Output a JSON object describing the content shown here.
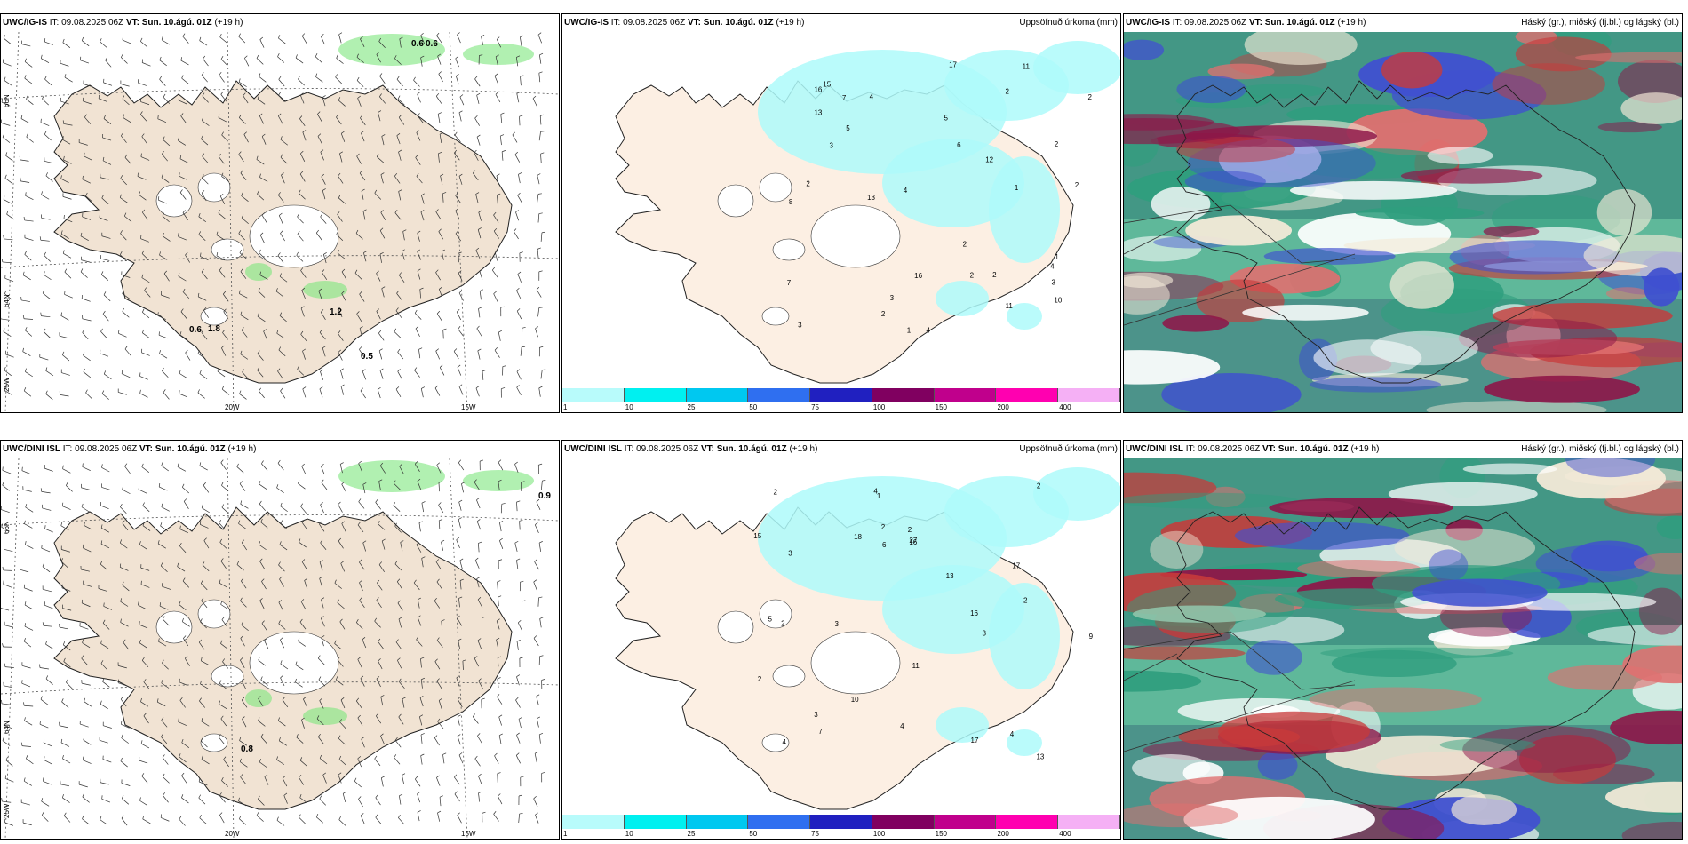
{
  "panels": [
    {
      "id": "p1",
      "model": "UWC/IG-IS",
      "it_prefix": "IT:",
      "it": "09.08.2025 06Z",
      "vt_prefix": "VT:",
      "vt": "Sun. 10.ágú. 01Z",
      "lead": "(+19 h)",
      "right_title": "",
      "kind": "wind"
    },
    {
      "id": "p2",
      "model": "UWC/IG-IS",
      "it_prefix": "IT:",
      "it": "09.08.2025 06Z",
      "vt_prefix": "VT:",
      "vt": "Sun. 10.ágú. 01Z",
      "lead": "(+19 h)",
      "right_title": "Uppsöfnuð úrkoma (mm)",
      "kind": "precip"
    },
    {
      "id": "p3",
      "model": "UWC/IG-IS",
      "it_prefix": "IT:",
      "it": "09.08.2025 06Z",
      "vt_prefix": "VT:",
      "vt": "Sun. 10.ágú. 01Z",
      "lead": "(+19 h)",
      "right_title": "Háský (gr.), miðský (fj.bl.) og lágský (bl.)",
      "kind": "cloud"
    },
    {
      "id": "p4",
      "model": "UWC/DINI ISL",
      "it_prefix": "IT:",
      "it": "09.08.2025 06Z",
      "vt_prefix": "VT:",
      "vt": "Sun. 10.ágú. 01Z",
      "lead": "(+19 h)",
      "right_title": "",
      "kind": "wind"
    },
    {
      "id": "p5",
      "model": "UWC/DINI ISL",
      "it_prefix": "IT:",
      "it": "09.08.2025 06Z",
      "vt_prefix": "VT:",
      "vt": "Sun. 10.ágú. 01Z",
      "lead": "(+19 h)",
      "right_title": "Uppsöfnuð úrkoma (mm)",
      "kind": "precip"
    },
    {
      "id": "p6",
      "model": "UWC/DINI ISL",
      "it_prefix": "IT:",
      "it": "09.08.2025 06Z",
      "vt_prefix": "VT:",
      "vt": "Sun. 10.ágú. 01Z",
      "lead": "(+19 h)",
      "right_title": "Háský (gr.), miðský (fj.bl.) og lágský (bl.)",
      "kind": "cloud"
    }
  ],
  "axis_labels": {
    "lat66": "66N",
    "lat64": "64N",
    "lon25": "25W",
    "lon20": "20W",
    "lon15": "15W"
  },
  "wind_values": {
    "p1": [
      "0.6",
      "0.6",
      "1.2",
      "0.6",
      "1.8",
      "0.5"
    ],
    "p4": [
      "0.9",
      "0.8"
    ]
  },
  "precip_values": {
    "p2": [
      "2",
      "2",
      "2",
      "3",
      "10",
      "13",
      "5",
      "11",
      "4",
      "6",
      "3",
      "3",
      "12",
      "17",
      "4",
      "4",
      "8",
      "11",
      "16",
      "15",
      "13",
      "3",
      "16",
      "2",
      "4",
      "2",
      "1",
      "7",
      "7",
      "1",
      "2",
      "2",
      "2",
      "1",
      "5",
      "2"
    ],
    "p5": [
      "2",
      "2",
      "3",
      "4",
      "17",
      "9",
      "7",
      "3",
      "5",
      "4",
      "27",
      "13",
      "6",
      "11",
      "13",
      "16",
      "15",
      "17",
      "18",
      "2",
      "4",
      "3",
      "4",
      "2",
      "16",
      "10",
      "3",
      "2",
      "1",
      "2",
      "2"
    ]
  },
  "legend": {
    "ticks": [
      "1",
      "10",
      "25",
      "50",
      "75",
      "100",
      "150",
      "200",
      "400"
    ],
    "colors": [
      "#b8fbfb",
      "#00f0f0",
      "#00c8f0",
      "#2f6ff0",
      "#2020c0",
      "#800060",
      "#c0008c",
      "#ff00b0",
      "#f5b0f5"
    ]
  },
  "colors": {
    "land": "#f1e3d3",
    "precip_land": "#fcefe3",
    "light_precip": "#aefafa",
    "cloud_high": "#2f9e7e",
    "cloud_mid": "#c83a3a",
    "cloud_low": "#4050d0",
    "wind_green": "#7de67d"
  }
}
